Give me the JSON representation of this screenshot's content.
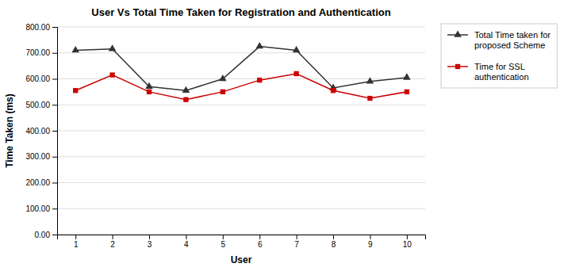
{
  "chart_data": {
    "type": "line",
    "title": "User Vs Total Time Taken for Registration and Authentication",
    "xlabel": "User",
    "ylabel": "Time Taken (ms)",
    "x": [
      1,
      2,
      3,
      4,
      5,
      6,
      7,
      8,
      9,
      10
    ],
    "series": [
      {
        "name": "Total Time taken for\nproposed Scheme",
        "color": "#333333",
        "marker": "triangle",
        "values": [
          710,
          715,
          570,
          555,
          600,
          725,
          710,
          565,
          590,
          605
        ]
      },
      {
        "name": "Time for SSL\nauthentication",
        "color": "#cc0000",
        "marker": "square",
        "values": [
          555,
          615,
          550,
          520,
          550,
          595,
          620,
          555,
          525,
          550
        ]
      }
    ],
    "xlim": [
      0.5,
      10.5
    ],
    "xticks": [
      1,
      2,
      3,
      4,
      5,
      6,
      7,
      8,
      9,
      10
    ],
    "ylim": [
      0,
      800
    ],
    "yticks": [
      {
        "value": 0,
        "label": "0.00"
      },
      {
        "value": 100,
        "label": "100.00"
      },
      {
        "value": 200,
        "label": "200.00"
      },
      {
        "value": 300,
        "label": "300.00"
      },
      {
        "value": 400,
        "label": "400.00"
      },
      {
        "value": 500,
        "label": "500.00"
      },
      {
        "value": 600,
        "label": "600.00"
      },
      {
        "value": 700,
        "label": "700.00"
      },
      {
        "value": 800,
        "label": "800.00"
      }
    ],
    "grid": "y",
    "legend": "right"
  }
}
